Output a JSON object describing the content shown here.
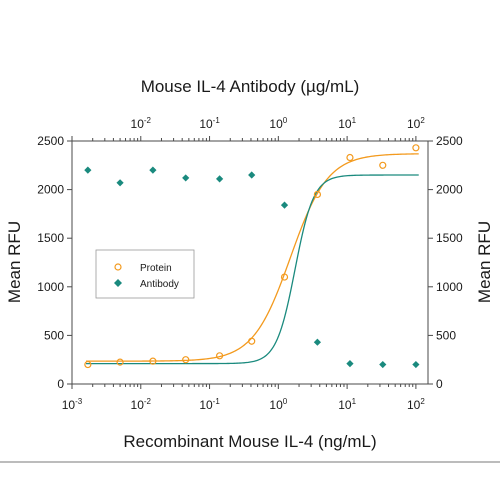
{
  "chart_data": {
    "type": "scatter",
    "top_axis_title": "Mouse IL-4 Antibody (µg/mL)",
    "xlabel": "Recombinant Mouse IL-4 (ng/mL)",
    "ylabel_left": "Mean RFU",
    "ylabel_right": "Mean RFU",
    "x_scale": "log",
    "xlim": [
      0.001,
      150
    ],
    "ylim": [
      0,
      2500
    ],
    "y_ticks": [
      0,
      500,
      1000,
      1500,
      2000,
      2500
    ],
    "bottom_ticks": [
      {
        "value": 0.001,
        "base": "10",
        "exp": "-3"
      },
      {
        "value": 0.01,
        "base": "10",
        "exp": "-2"
      },
      {
        "value": 0.1,
        "base": "10",
        "exp": "-1"
      },
      {
        "value": 1,
        "base": "10",
        "exp": "0"
      },
      {
        "value": 10,
        "base": "10",
        "exp": "1"
      },
      {
        "value": 100,
        "base": "10",
        "exp": "2"
      }
    ],
    "top_ticks": [
      {
        "value": 0.01,
        "base": "10",
        "exp": "-2"
      },
      {
        "value": 0.1,
        "base": "10",
        "exp": "-1"
      },
      {
        "value": 1,
        "base": "10",
        "exp": "0"
      },
      {
        "value": 10,
        "base": "10",
        "exp": "1"
      },
      {
        "value": 100,
        "base": "10",
        "exp": "2"
      }
    ],
    "legend_position": "middle-left",
    "series": [
      {
        "name": "Protein",
        "marker": "open-circle",
        "color": "#f39a1e",
        "x": [
          0.0017,
          0.005,
          0.015,
          0.045,
          0.14,
          0.41,
          1.23,
          3.7,
          11,
          33,
          100
        ],
        "y": [
          200,
          225,
          235,
          250,
          290,
          440,
          1100,
          1950,
          2330,
          2250,
          2430
        ],
        "fit": {
          "bottom": 235,
          "top": 2370,
          "ec50": 1.5,
          "hill": 1.6
        }
      },
      {
        "name": "Antibody",
        "marker": "filled-diamond",
        "color": "#1a8a7e",
        "x": [
          0.0017,
          0.005,
          0.015,
          0.045,
          0.14,
          0.41,
          1.23,
          3.7,
          11,
          33,
          100
        ],
        "y": [
          2200,
          2070,
          2200,
          2120,
          2110,
          2150,
          1840,
          430,
          210,
          200,
          200
        ],
        "fit": {
          "bottom": 210,
          "top": 2150,
          "ec50": 1.75,
          "hill": 3.2
        }
      }
    ]
  }
}
